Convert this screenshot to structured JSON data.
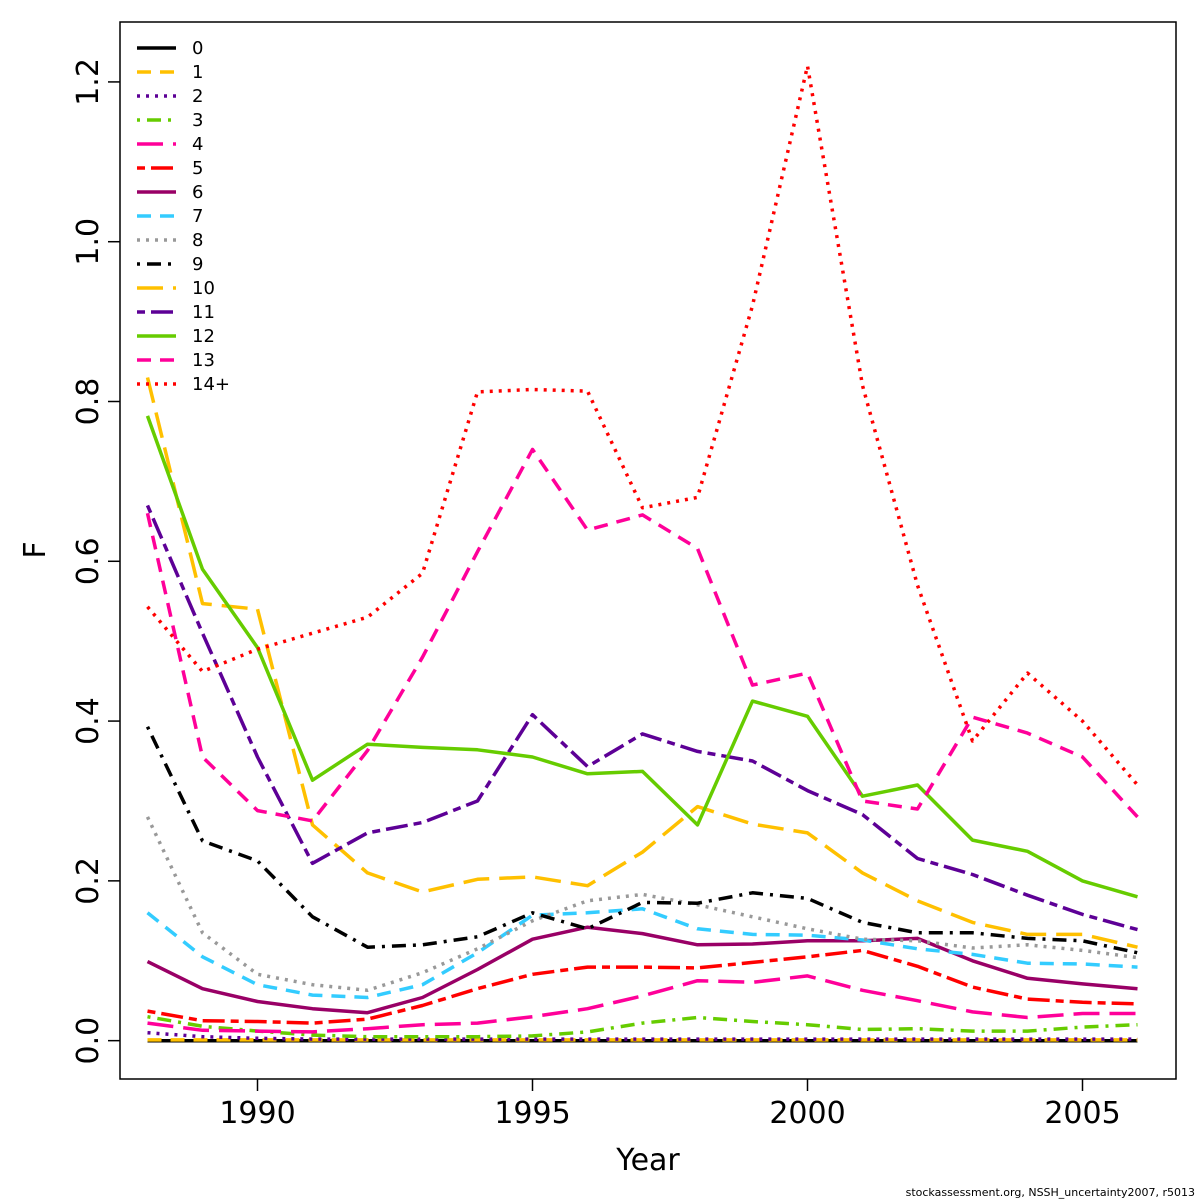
{
  "chart_data": {
    "type": "line",
    "title": "",
    "xlabel": "Year",
    "ylabel": "F",
    "xlim": [
      1987.5,
      2006.7
    ],
    "ylim": [
      -0.048,
      1.275
    ],
    "x_ticks": [
      1990,
      1995,
      2000,
      2005
    ],
    "y_ticks": [
      0.0,
      0.2,
      0.4,
      0.6,
      0.8,
      1.0,
      1.2
    ],
    "y_tick_labels": [
      "0.0",
      "0.2",
      "0.4",
      "0.6",
      "0.8",
      "1.0",
      "1.2"
    ],
    "legend_position": "top-left",
    "grid": false,
    "footer": "stockassessment.org, NSSH_uncertainty2007, r5013",
    "x": [
      1988,
      1989,
      1990,
      1991,
      1992,
      1993,
      1994,
      1995,
      1996,
      1997,
      1998,
      1999,
      2000,
      2001,
      2002,
      2003,
      2004,
      2005,
      2006
    ],
    "series": [
      {
        "name": "0",
        "color": "#000000",
        "dash": "solid",
        "values": [
          0,
          0,
          0,
          0,
          0,
          0,
          0,
          0,
          0,
          0,
          0,
          0,
          0,
          0,
          0,
          0,
          0,
          0,
          0
        ]
      },
      {
        "name": "1",
        "color": "#FFC000",
        "dash": "dashed",
        "values": [
          0.001,
          0.001,
          0.001,
          0.001,
          0.001,
          0.001,
          0.001,
          0.001,
          0.001,
          0.001,
          0.001,
          0.001,
          0.001,
          0.001,
          0.001,
          0.001,
          0.001,
          0.001,
          0.001
        ]
      },
      {
        "name": "2",
        "color": "#5D0096",
        "dash": "dotted",
        "values": [
          0.01,
          0.005,
          0.003,
          0.002,
          0.002,
          0.002,
          0.002,
          0.002,
          0.002,
          0.002,
          0.002,
          0.002,
          0.002,
          0.002,
          0.002,
          0.002,
          0.002,
          0.002,
          0.002
        ]
      },
      {
        "name": "3",
        "color": "#66CC00",
        "dash": "dotdash",
        "values": [
          0.03,
          0.018,
          0.012,
          0.007,
          0.005,
          0.005,
          0.005,
          0.006,
          0.011,
          0.022,
          0.029,
          0.024,
          0.02,
          0.014,
          0.015,
          0.012,
          0.012,
          0.017,
          0.02
        ]
      },
      {
        "name": "4",
        "color": "#FF0099",
        "dash": "longdash",
        "values": [
          0.022,
          0.013,
          0.012,
          0.011,
          0.015,
          0.02,
          0.022,
          0.03,
          0.04,
          0.056,
          0.075,
          0.073,
          0.081,
          0.063,
          0.05,
          0.036,
          0.029,
          0.034,
          0.034
        ]
      },
      {
        "name": "5",
        "color": "#FF0000",
        "dash": "twodash",
        "values": [
          0.037,
          0.025,
          0.024,
          0.022,
          0.027,
          0.044,
          0.065,
          0.083,
          0.092,
          0.092,
          0.091,
          0.098,
          0.105,
          0.113,
          0.093,
          0.067,
          0.052,
          0.048,
          0.046
        ]
      },
      {
        "name": "6",
        "color": "#990066",
        "dash": "solid",
        "values": [
          0.099,
          0.065,
          0.049,
          0.04,
          0.035,
          0.054,
          0.089,
          0.127,
          0.142,
          0.134,
          0.12,
          0.121,
          0.125,
          0.125,
          0.128,
          0.1,
          0.078,
          0.071,
          0.065
        ]
      },
      {
        "name": "7",
        "color": "#33CCFF",
        "dash": "dashed",
        "values": [
          0.16,
          0.105,
          0.07,
          0.057,
          0.054,
          0.07,
          0.11,
          0.157,
          0.16,
          0.165,
          0.14,
          0.133,
          0.132,
          0.126,
          0.115,
          0.108,
          0.097,
          0.096,
          0.092
        ]
      },
      {
        "name": "8",
        "color": "#999999",
        "dash": "dotted",
        "values": [
          0.28,
          0.135,
          0.083,
          0.07,
          0.063,
          0.085,
          0.115,
          0.15,
          0.175,
          0.183,
          0.17,
          0.155,
          0.14,
          0.127,
          0.125,
          0.116,
          0.12,
          0.113,
          0.104
        ]
      },
      {
        "name": "9",
        "color": "#000000",
        "dash": "dotdash",
        "values": [
          0.393,
          0.25,
          0.225,
          0.155,
          0.117,
          0.12,
          0.13,
          0.16,
          0.14,
          0.173,
          0.172,
          0.185,
          0.178,
          0.148,
          0.135,
          0.135,
          0.128,
          0.125,
          0.11
        ]
      },
      {
        "name": "10",
        "color": "#FFC000",
        "dash": "longdash",
        "values": [
          0.83,
          0.547,
          0.54,
          0.27,
          0.21,
          0.186,
          0.202,
          0.205,
          0.194,
          0.236,
          0.293,
          0.271,
          0.26,
          0.21,
          0.175,
          0.148,
          0.133,
          0.133,
          0.117
        ]
      },
      {
        "name": "11",
        "color": "#5D0096",
        "dash": "twodash",
        "values": [
          0.67,
          0.51,
          0.355,
          0.222,
          0.26,
          0.273,
          0.3,
          0.408,
          0.343,
          0.384,
          0.362,
          0.35,
          0.313,
          0.283,
          0.228,
          0.208,
          0.182,
          0.158,
          0.139
        ]
      },
      {
        "name": "12",
        "color": "#66CC00",
        "dash": "solid",
        "values": [
          0.782,
          0.59,
          0.492,
          0.326,
          0.371,
          0.367,
          0.364,
          0.355,
          0.334,
          0.337,
          0.27,
          0.425,
          0.406,
          0.306,
          0.32,
          0.251,
          0.237,
          0.2,
          0.18
        ]
      },
      {
        "name": "13",
        "color": "#FF0099",
        "dash": "dashed",
        "values": [
          0.66,
          0.355,
          0.288,
          0.275,
          0.363,
          0.48,
          0.612,
          0.74,
          0.639,
          0.658,
          0.616,
          0.445,
          0.46,
          0.3,
          0.29,
          0.405,
          0.385,
          0.355,
          0.28
        ]
      },
      {
        "name": "14+",
        "color": "#FF0000",
        "dash": "dotted",
        "values": [
          0.543,
          0.462,
          0.49,
          0.51,
          0.53,
          0.585,
          0.812,
          0.815,
          0.813,
          0.667,
          0.68,
          0.92,
          1.22,
          0.82,
          0.57,
          0.375,
          0.46,
          0.4,
          0.32
        ]
      }
    ]
  }
}
